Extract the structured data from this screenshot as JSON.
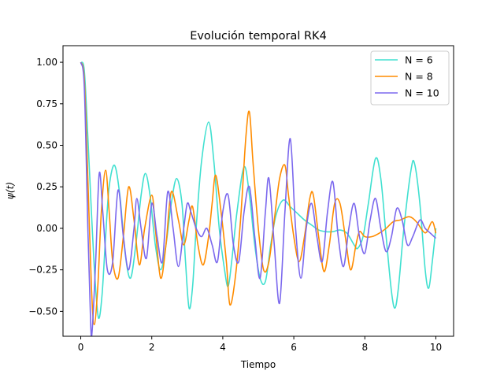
{
  "chart_data": {
    "type": "line",
    "title": "Evolución temporal RK4",
    "xlabel": "Tiempo",
    "ylabel": "ψ(t)",
    "xlim": [
      -0.5,
      10.5
    ],
    "ylim": [
      -0.65,
      1.1
    ],
    "xticks": [
      0,
      2,
      4,
      6,
      8,
      10
    ],
    "yticks": [
      -0.5,
      -0.25,
      0.0,
      0.25,
      0.5,
      0.75,
      1.0
    ],
    "xtick_labels": [
      "0",
      "2",
      "4",
      "6",
      "8",
      "10"
    ],
    "ytick_labels": [
      "−0.50",
      "−0.25",
      "0.00",
      "0.25",
      "0.50",
      "0.75",
      "1.00"
    ],
    "grid": false,
    "legend_position": "top-right",
    "series": [
      {
        "name": "N = 6",
        "color": "#40e0d0",
        "points": [
          [
            0.0,
            1.0
          ],
          [
            0.1,
            0.95
          ],
          [
            0.2,
            0.55
          ],
          [
            0.3,
            0.1
          ],
          [
            0.4,
            -0.3
          ],
          [
            0.5,
            -0.54
          ],
          [
            0.6,
            -0.4
          ],
          [
            0.7,
            -0.05
          ],
          [
            0.8,
            0.25
          ],
          [
            0.95,
            0.38
          ],
          [
            1.1,
            0.2
          ],
          [
            1.25,
            -0.15
          ],
          [
            1.4,
            -0.3
          ],
          [
            1.55,
            -0.1
          ],
          [
            1.7,
            0.2
          ],
          [
            1.82,
            0.33
          ],
          [
            1.95,
            0.2
          ],
          [
            2.1,
            -0.1
          ],
          [
            2.25,
            -0.25
          ],
          [
            2.4,
            -0.1
          ],
          [
            2.55,
            0.15
          ],
          [
            2.7,
            0.3
          ],
          [
            2.85,
            0.15
          ],
          [
            2.95,
            -0.2
          ],
          [
            3.05,
            -0.48
          ],
          [
            3.15,
            -0.35
          ],
          [
            3.25,
            0.0
          ],
          [
            3.4,
            0.4
          ],
          [
            3.6,
            0.64
          ],
          [
            3.75,
            0.4
          ],
          [
            3.9,
            0.0
          ],
          [
            4.05,
            -0.25
          ],
          [
            4.15,
            -0.35
          ],
          [
            4.25,
            -0.2
          ],
          [
            4.4,
            0.1
          ],
          [
            4.6,
            0.37
          ],
          [
            4.75,
            0.2
          ],
          [
            4.9,
            -0.1
          ],
          [
            5.05,
            -0.3
          ],
          [
            5.2,
            -0.32
          ],
          [
            5.35,
            -0.1
          ],
          [
            5.5,
            0.08
          ],
          [
            5.7,
            0.17
          ],
          [
            5.9,
            0.13
          ],
          [
            6.1,
            0.09
          ],
          [
            6.3,
            0.05
          ],
          [
            6.5,
            0.02
          ],
          [
            6.7,
            -0.01
          ],
          [
            6.9,
            -0.02
          ],
          [
            7.1,
            -0.02
          ],
          [
            7.3,
            -0.01
          ],
          [
            7.5,
            -0.03
          ],
          [
            7.7,
            -0.1
          ],
          [
            7.8,
            -0.12
          ],
          [
            7.95,
            -0.05
          ],
          [
            8.1,
            0.15
          ],
          [
            8.3,
            0.42
          ],
          [
            8.45,
            0.3
          ],
          [
            8.6,
            -0.05
          ],
          [
            8.75,
            -0.38
          ],
          [
            8.85,
            -0.48
          ],
          [
            8.95,
            -0.35
          ],
          [
            9.1,
            0.0
          ],
          [
            9.3,
            0.35
          ],
          [
            9.4,
            0.39
          ],
          [
            9.55,
            0.15
          ],
          [
            9.7,
            -0.25
          ],
          [
            9.8,
            -0.36
          ],
          [
            9.9,
            -0.2
          ],
          [
            10.0,
            0.0
          ]
        ]
      },
      {
        "name": "N = 8",
        "color": "#ff8c00",
        "points": [
          [
            0.0,
            1.0
          ],
          [
            0.1,
            0.9
          ],
          [
            0.2,
            0.3
          ],
          [
            0.3,
            -0.35
          ],
          [
            0.38,
            -0.58
          ],
          [
            0.48,
            -0.35
          ],
          [
            0.58,
            0.1
          ],
          [
            0.7,
            0.35
          ],
          [
            0.8,
            0.1
          ],
          [
            0.9,
            -0.2
          ],
          [
            1.05,
            -0.3
          ],
          [
            1.2,
            -0.05
          ],
          [
            1.35,
            0.25
          ],
          [
            1.5,
            0.05
          ],
          [
            1.65,
            -0.22
          ],
          [
            1.8,
            0.0
          ],
          [
            2.0,
            0.2
          ],
          [
            2.1,
            0.0
          ],
          [
            2.25,
            -0.3
          ],
          [
            2.4,
            -0.1
          ],
          [
            2.55,
            0.22
          ],
          [
            2.75,
            0.05
          ],
          [
            2.9,
            -0.1
          ],
          [
            3.05,
            0.05
          ],
          [
            3.15,
            0.13
          ],
          [
            3.3,
            -0.1
          ],
          [
            3.45,
            -0.22
          ],
          [
            3.6,
            -0.05
          ],
          [
            3.7,
            0.15
          ],
          [
            3.8,
            0.32
          ],
          [
            3.95,
            0.1
          ],
          [
            4.1,
            -0.2
          ],
          [
            4.2,
            -0.46
          ],
          [
            4.35,
            -0.3
          ],
          [
            4.5,
            0.05
          ],
          [
            4.65,
            0.55
          ],
          [
            4.75,
            0.7
          ],
          [
            4.85,
            0.4
          ],
          [
            5.0,
            0.0
          ],
          [
            5.15,
            -0.25
          ],
          [
            5.3,
            -0.2
          ],
          [
            5.45,
            0.05
          ],
          [
            5.6,
            0.3
          ],
          [
            5.75,
            0.38
          ],
          [
            5.85,
            0.2
          ],
          [
            6.0,
            -0.05
          ],
          [
            6.15,
            -0.2
          ],
          [
            6.3,
            -0.05
          ],
          [
            6.45,
            0.18
          ],
          [
            6.55,
            0.2
          ],
          [
            6.7,
            -0.05
          ],
          [
            6.85,
            -0.26
          ],
          [
            7.0,
            -0.1
          ],
          [
            7.15,
            0.15
          ],
          [
            7.3,
            0.15
          ],
          [
            7.45,
            -0.05
          ],
          [
            7.6,
            -0.25
          ],
          [
            7.75,
            -0.1
          ],
          [
            7.85,
            -0.02
          ],
          [
            8.0,
            -0.05
          ],
          [
            8.2,
            -0.05
          ],
          [
            8.4,
            -0.03
          ],
          [
            8.6,
            0.0
          ],
          [
            8.8,
            0.04
          ],
          [
            9.0,
            0.05
          ],
          [
            9.25,
            0.07
          ],
          [
            9.45,
            0.04
          ],
          [
            9.65,
            -0.02
          ],
          [
            9.75,
            -0.02
          ],
          [
            9.9,
            0.04
          ],
          [
            10.0,
            -0.03
          ]
        ]
      },
      {
        "name": "N = 10",
        "color": "#7b68ee",
        "points": [
          [
            0.0,
            1.0
          ],
          [
            0.1,
            0.85
          ],
          [
            0.2,
            0.0
          ],
          [
            0.28,
            -0.58
          ],
          [
            0.32,
            -0.62
          ],
          [
            0.42,
            -0.2
          ],
          [
            0.52,
            0.33
          ],
          [
            0.62,
            0.1
          ],
          [
            0.75,
            -0.25
          ],
          [
            0.9,
            -0.2
          ],
          [
            1.05,
            0.23
          ],
          [
            1.2,
            -0.05
          ],
          [
            1.35,
            -0.25
          ],
          [
            1.5,
            0.0
          ],
          [
            1.58,
            0.18
          ],
          [
            1.7,
            0.0
          ],
          [
            1.85,
            -0.18
          ],
          [
            2.0,
            0.15
          ],
          [
            2.15,
            -0.05
          ],
          [
            2.3,
            -0.2
          ],
          [
            2.45,
            0.22
          ],
          [
            2.6,
            0.0
          ],
          [
            2.75,
            -0.23
          ],
          [
            2.9,
            0.0
          ],
          [
            3.0,
            0.15
          ],
          [
            3.1,
            0.1
          ],
          [
            3.25,
            0.0
          ],
          [
            3.4,
            -0.05
          ],
          [
            3.55,
            0.0
          ],
          [
            3.7,
            -0.1
          ],
          [
            3.85,
            -0.2
          ],
          [
            4.0,
            0.1
          ],
          [
            4.15,
            0.2
          ],
          [
            4.3,
            -0.1
          ],
          [
            4.45,
            -0.2
          ],
          [
            4.6,
            0.1
          ],
          [
            4.75,
            0.25
          ],
          [
            4.9,
            -0.05
          ],
          [
            5.05,
            -0.3
          ],
          [
            5.2,
            0.1
          ],
          [
            5.3,
            0.3
          ],
          [
            5.45,
            -0.1
          ],
          [
            5.6,
            -0.45
          ],
          [
            5.75,
            0.1
          ],
          [
            5.9,
            0.54
          ],
          [
            6.05,
            0.0
          ],
          [
            6.2,
            -0.3
          ],
          [
            6.35,
            0.0
          ],
          [
            6.5,
            0.15
          ],
          [
            6.65,
            -0.05
          ],
          [
            6.8,
            -0.2
          ],
          [
            6.95,
            0.1
          ],
          [
            7.1,
            0.28
          ],
          [
            7.25,
            -0.05
          ],
          [
            7.4,
            -0.23
          ],
          [
            7.55,
            0.0
          ],
          [
            7.7,
            0.15
          ],
          [
            7.85,
            -0.05
          ],
          [
            8.0,
            -0.15
          ],
          [
            8.15,
            0.05
          ],
          [
            8.3,
            0.18
          ],
          [
            8.45,
            0.0
          ],
          [
            8.6,
            -0.14
          ],
          [
            8.75,
            -0.05
          ],
          [
            8.9,
            0.12
          ],
          [
            9.05,
            0.05
          ],
          [
            9.2,
            -0.1
          ],
          [
            9.35,
            -0.05
          ],
          [
            9.55,
            0.05
          ],
          [
            9.7,
            0.0
          ],
          [
            9.85,
            -0.03
          ],
          [
            10.0,
            -0.06
          ]
        ]
      }
    ]
  }
}
